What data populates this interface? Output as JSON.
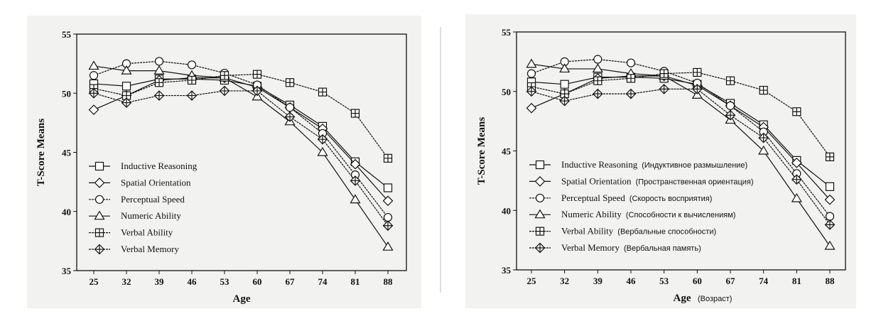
{
  "chart_data": [
    {
      "type": "line",
      "title": "",
      "xlabel": "Age",
      "ylabel": "T-Score Means",
      "ylim": [
        35,
        55
      ],
      "yticks": [
        35,
        40,
        45,
        50,
        55
      ],
      "x": [
        25,
        32,
        39,
        46,
        53,
        60,
        67,
        74,
        81,
        88
      ],
      "legend_position": "bottom-left",
      "series": [
        {
          "name": "Inductive Reasoning",
          "marker": "square",
          "values": [
            50.8,
            50.6,
            51.2,
            51.2,
            51.1,
            50.6,
            49.0,
            47.2,
            44.2,
            42.0
          ]
        },
        {
          "name": "Spatial Orientation",
          "marker": "diamond",
          "values": [
            48.6,
            49.8,
            51.1,
            51.3,
            51.3,
            50.5,
            48.8,
            47.0,
            44.0,
            40.9
          ]
        },
        {
          "name": "Perceptual Speed",
          "marker": "circle",
          "values": [
            51.5,
            52.5,
            52.7,
            52.4,
            51.7,
            50.7,
            48.8,
            46.6,
            43.1,
            39.5
          ]
        },
        {
          "name": "Numeric Ability",
          "marker": "triangle",
          "values": [
            52.3,
            51.9,
            51.9,
            51.5,
            51.3,
            49.7,
            47.6,
            45.0,
            41.0,
            37.0
          ]
        },
        {
          "name": "Verbal Ability",
          "marker": "square-plus",
          "values": [
            50.4,
            49.8,
            50.9,
            51.1,
            51.5,
            51.6,
            50.9,
            50.1,
            48.3,
            44.5
          ]
        },
        {
          "name": "Verbal Memory",
          "marker": "diamond-plus",
          "values": [
            50.0,
            49.2,
            49.8,
            49.8,
            50.2,
            50.2,
            48.0,
            46.1,
            42.6,
            38.8
          ]
        }
      ]
    },
    {
      "type": "line",
      "title": "",
      "xlabel": "Age",
      "xlabel_translation": "(Возраст)",
      "ylabel": "T-Score Means",
      "ylim": [
        35,
        55
      ],
      "yticks": [
        35,
        40,
        45,
        50,
        55
      ],
      "x": [
        25,
        32,
        39,
        46,
        53,
        60,
        67,
        74,
        81,
        88
      ],
      "legend_position": "bottom-left",
      "series": [
        {
          "name": "Inductive Reasoning",
          "translation": "(Индуктивное размышление)",
          "marker": "square",
          "values": [
            50.8,
            50.6,
            51.2,
            51.2,
            51.1,
            50.6,
            49.0,
            47.2,
            44.2,
            42.0
          ]
        },
        {
          "name": "Spatial Orientation",
          "translation": "(Пространственная ориентация)",
          "marker": "diamond",
          "values": [
            48.6,
            49.8,
            51.1,
            51.3,
            51.3,
            50.5,
            48.8,
            47.0,
            44.0,
            40.9
          ]
        },
        {
          "name": "Perceptual Speed",
          "translation": "(Скорость восприятия)",
          "marker": "circle",
          "values": [
            51.5,
            52.5,
            52.7,
            52.4,
            51.7,
            50.7,
            48.8,
            46.6,
            43.1,
            39.5
          ]
        },
        {
          "name": "Numeric Ability",
          "translation": "(Способности к вычислениям)",
          "marker": "triangle",
          "values": [
            52.3,
            51.9,
            51.9,
            51.5,
            51.3,
            49.7,
            47.6,
            45.0,
            41.0,
            37.0
          ]
        },
        {
          "name": "Verbal Ability",
          "translation": "(Вербальные способности)",
          "marker": "square-plus",
          "values": [
            50.4,
            49.8,
            50.9,
            51.1,
            51.5,
            51.6,
            50.9,
            50.1,
            48.3,
            44.5
          ]
        },
        {
          "name": "Verbal Memory",
          "translation": "(Вербальная память)",
          "marker": "diamond-plus",
          "values": [
            50.0,
            49.2,
            49.8,
            49.8,
            50.2,
            50.2,
            48.0,
            46.1,
            42.6,
            38.8
          ]
        }
      ]
    }
  ]
}
